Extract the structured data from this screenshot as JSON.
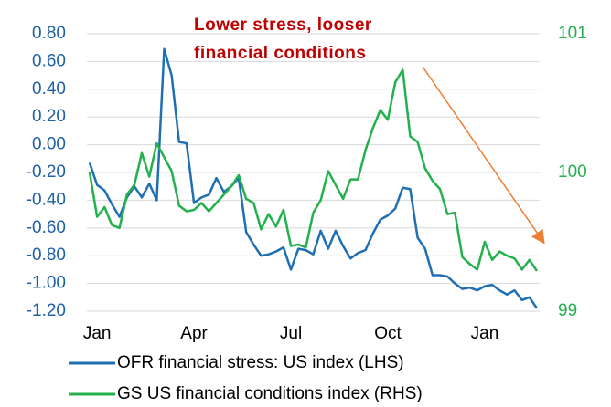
{
  "chart_data": {
    "type": "line",
    "annotation": [
      "Lower stress, looser",
      "financial conditions"
    ],
    "annotation_color": "#c00000",
    "arrow_color": "#ed7d31",
    "grid": true,
    "categories": [
      null,
      "Jan",
      null,
      null,
      null,
      null,
      null,
      null,
      null,
      null,
      null,
      null,
      null,
      null,
      "Apr",
      null,
      null,
      null,
      null,
      null,
      null,
      null,
      null,
      null,
      null,
      null,
      null,
      "Jul",
      null,
      null,
      null,
      null,
      null,
      null,
      null,
      null,
      null,
      null,
      null,
      null,
      "Oct",
      null,
      null,
      null,
      null,
      null,
      null,
      null,
      null,
      null,
      null,
      null,
      null,
      "Jan",
      null,
      null,
      null,
      null,
      null,
      null,
      null
    ],
    "ylim": [
      -1.2,
      0.8
    ],
    "yticks": [
      {
        "value": 0.8,
        "label": "0.80"
      },
      {
        "value": 0.6,
        "label": "0.60"
      },
      {
        "value": 0.4,
        "label": "0.40"
      },
      {
        "value": 0.2,
        "label": "0.20"
      },
      {
        "value": 0,
        "label": "0.00"
      },
      {
        "value": -0.2,
        "label": "-0.20"
      },
      {
        "value": -0.4,
        "label": "-0.40"
      },
      {
        "value": -0.6,
        "label": "-0.60"
      },
      {
        "value": -0.8,
        "label": "-0.80"
      },
      {
        "value": -1.0,
        "label": "-1.00"
      },
      {
        "value": -1.2,
        "label": "-1.20"
      }
    ],
    "y2lim": [
      99,
      101
    ],
    "y2ticks": [
      101,
      100,
      99
    ],
    "series": [
      {
        "name": "OFR financial stress: US index (LHS)",
        "color": "#1f6fb5",
        "values": [
          -0.13,
          -0.29,
          -0.33,
          -0.43,
          -0.52,
          -0.38,
          -0.3,
          -0.38,
          -0.28,
          -0.4,
          0.69,
          0.5,
          0.02,
          0.01,
          -0.42,
          -0.38,
          -0.36,
          -0.24,
          -0.34,
          -0.3,
          -0.24,
          -0.63,
          -0.72,
          -0.8,
          -0.79,
          -0.77,
          -0.74,
          -0.9,
          -0.75,
          -0.76,
          -0.79,
          -0.62,
          -0.75,
          -0.62,
          -0.73,
          -0.82,
          -0.78,
          -0.76,
          -0.64,
          -0.54,
          -0.51,
          -0.46,
          -0.31,
          -0.32,
          -0.67,
          -0.75,
          -0.94,
          -0.94,
          -0.95,
          -1.0,
          -1.04,
          -1.03,
          -1.05,
          -1.02,
          -1.01,
          -1.05,
          -1.08,
          -1.05,
          -1.12,
          -1.1,
          -1.18
        ]
      },
      {
        "name": "GS US financial conditions index (RHS)",
        "color": "#22b14c",
        "axis": "y2",
        "values": [
          100.0,
          99.68,
          99.75,
          99.62,
          99.6,
          99.84,
          99.91,
          100.14,
          99.97,
          100.21,
          100.11,
          100.01,
          99.76,
          99.72,
          99.73,
          99.78,
          99.72,
          99.78,
          99.84,
          99.9,
          99.98,
          99.81,
          99.78,
          99.59,
          99.7,
          99.61,
          99.73,
          99.47,
          99.48,
          99.46,
          99.71,
          99.8,
          100.01,
          99.91,
          99.81,
          99.95,
          99.95,
          100.16,
          100.32,
          100.45,
          100.38,
          100.65,
          100.74,
          100.26,
          100.22,
          100.03,
          99.94,
          99.88,
          99.7,
          99.71,
          99.39,
          99.34,
          99.3,
          99.5,
          99.37,
          99.43,
          99.4,
          99.38,
          99.3,
          99.37,
          99.29
        ]
      }
    ]
  }
}
